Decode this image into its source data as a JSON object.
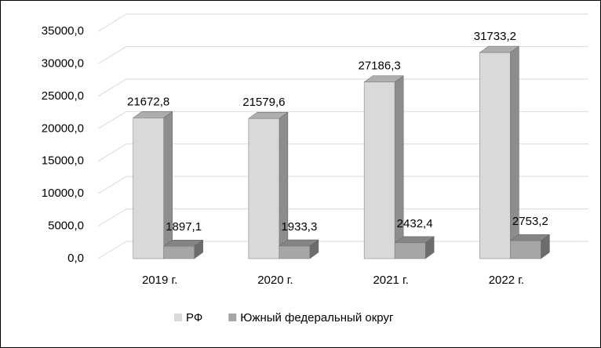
{
  "chart_data": {
    "type": "bar",
    "categories": [
      "2019 г.",
      "2020 г.",
      "2021 г.",
      "2022 г."
    ],
    "series": [
      {
        "name": "РФ",
        "color": "#d9d9d9",
        "values": [
          21672.8,
          21579.6,
          27186.3,
          31733.2
        ],
        "value_labels": [
          "21672,8",
          "21579,6",
          "27186,3",
          "31733,2"
        ]
      },
      {
        "name": "Южный федеральный округ",
        "color": "#a6a6a6",
        "values": [
          1897.1,
          1933.3,
          2432.4,
          2753.2
        ],
        "value_labels": [
          "1897,1",
          "1933,3",
          "2432,4",
          "2753,2"
        ]
      }
    ],
    "ylim": [
      0,
      35000
    ],
    "yticks": [
      {
        "value": 0,
        "label": "0,0"
      },
      {
        "value": 5000,
        "label": "5000,0"
      },
      {
        "value": 10000,
        "label": "10000,0"
      },
      {
        "value": 15000,
        "label": "15000,0"
      },
      {
        "value": 20000,
        "label": "20000,0"
      },
      {
        "value": 25000,
        "label": "25000,0"
      },
      {
        "value": 30000,
        "label": "30000,0"
      },
      {
        "value": 35000,
        "label": "35000,0"
      }
    ],
    "grid": true,
    "legend": "bottom"
  }
}
